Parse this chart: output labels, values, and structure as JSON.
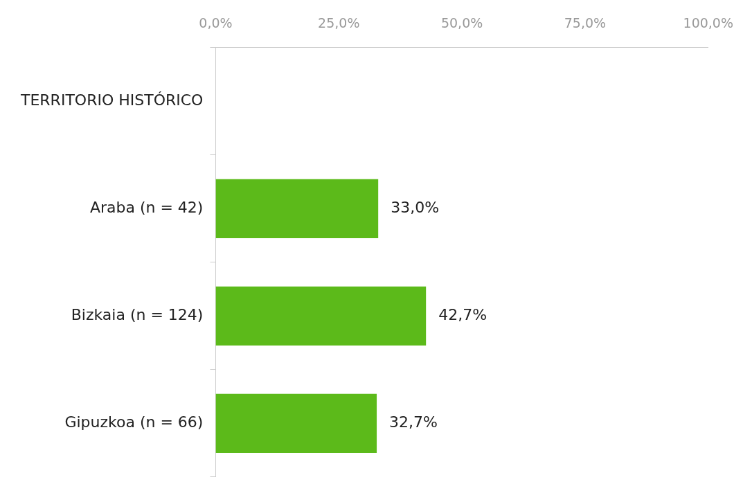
{
  "chart_data": {
    "type": "bar",
    "orientation": "horizontal",
    "categories": [
      "TERRITORIO HISTÓRICO",
      "Araba (n = 42)",
      "Bizkaia (n = 124)",
      "Gipuzkoa (n = 66)"
    ],
    "values": [
      null,
      33.0,
      42.7,
      32.7
    ],
    "value_labels": [
      null,
      "33,0%",
      "42,7%",
      "32,7%"
    ],
    "color": "#5cba1a",
    "xlim": [
      0,
      100
    ],
    "xticks": [
      {
        "value": 0,
        "label": "0,0%"
      },
      {
        "value": 25,
        "label": "25,0%"
      },
      {
        "value": 50,
        "label": "50,0%"
      },
      {
        "value": 75,
        "label": "75,0%"
      },
      {
        "value": 100,
        "label": "100,0%"
      }
    ],
    "grid": false,
    "legend": false
  }
}
